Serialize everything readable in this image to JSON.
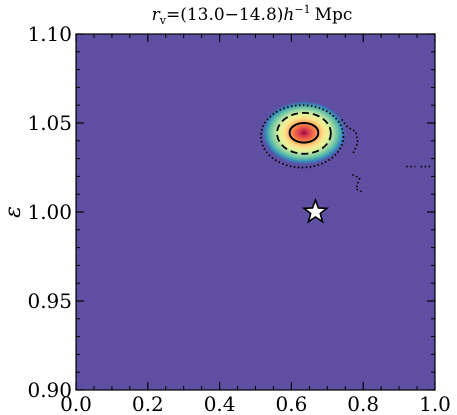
{
  "chart_data": {
    "type": "heatmap",
    "title_parts": {
      "symbol": "r",
      "subscript": "v",
      "range": "=(13.0−14.8)",
      "h": "h",
      "exponent": "−1",
      "unit": "Mpc"
    },
    "xlabel": "",
    "ylabel": "ε",
    "xlim": [
      0.0,
      1.0
    ],
    "ylim": [
      0.9,
      1.1
    ],
    "x_ticks": [
      0.0,
      0.2,
      0.4,
      0.6,
      0.8,
      1.0
    ],
    "x_tick_labels": [
      "0.0",
      "0.2",
      "0.4",
      "0.6",
      "0.8",
      "1.0"
    ],
    "y_ticks": [
      0.9,
      0.95,
      1.0,
      1.05,
      1.1
    ],
    "y_tick_labels": [
      "0.90",
      "0.95",
      "1.00",
      "1.05",
      "1.10"
    ],
    "peak": {
      "x": 0.635,
      "y": 1.0445
    },
    "fiducial_marker": {
      "x": 0.667,
      "y": 1.0,
      "shape": "star",
      "fill": "#ffffff",
      "stroke": "#000000"
    },
    "background_color": "#5e4fa2",
    "colormap": [
      "#5e4fa2",
      "#3288bd",
      "#66c2a5",
      "#abdda4",
      "#e6f598",
      "#fee08b",
      "#fdae61",
      "#f46d43",
      "#d53e4f",
      "#9e0142"
    ],
    "contours": [
      {
        "level": "inner",
        "style": "solid",
        "center": [
          0.635,
          1.0445
        ],
        "rx": 0.04,
        "ry": 0.0055
      },
      {
        "level": "middle",
        "style": "dashed",
        "center": [
          0.635,
          1.0442
        ],
        "rx": 0.075,
        "ry": 0.0115
      },
      {
        "level": "outer",
        "style": "dotted",
        "center": [
          0.63,
          1.0425
        ],
        "rx": 0.115,
        "ry": 0.0175
      }
    ],
    "outer_contour_fragments": [
      {
        "style": "dotted",
        "points": [
          [
            0.74,
            1.052
          ],
          [
            0.755,
            1.048
          ],
          [
            0.78,
            1.045
          ],
          [
            0.785,
            1.039
          ],
          [
            0.77,
            1.032
          ]
        ]
      },
      {
        "style": "dotted",
        "points": [
          [
            0.77,
            1.021
          ],
          [
            0.79,
            1.019
          ],
          [
            0.78,
            1.013
          ],
          [
            0.8,
            1.011
          ]
        ]
      },
      {
        "style": "dotted",
        "points": [
          [
            0.92,
            1.0255
          ],
          [
            0.945,
            1.0255
          ]
        ]
      },
      {
        "style": "dotted",
        "points": [
          [
            0.96,
            1.0255
          ],
          [
            0.99,
            1.0255
          ]
        ]
      }
    ]
  }
}
